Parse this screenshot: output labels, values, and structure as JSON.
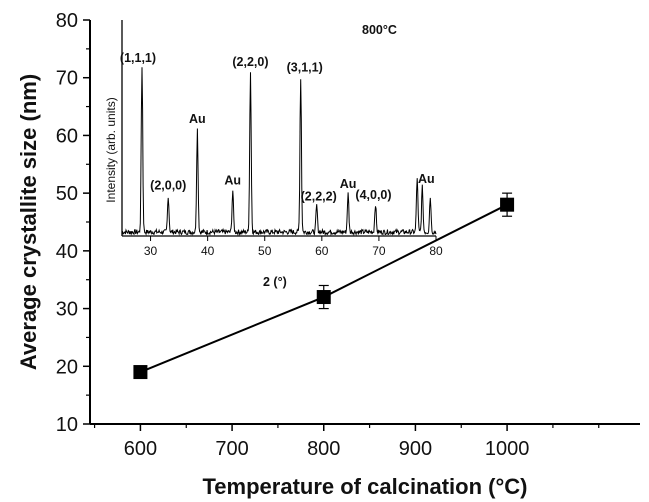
{
  "chart_data": [
    {
      "type": "line",
      "title": "",
      "xlabel": "Temperature of calcination (°C)",
      "ylabel": "Average crystallite size (nm)",
      "xlim": [
        545,
        1145
      ],
      "ylim": [
        10,
        80
      ],
      "x_ticks": [
        600,
        700,
        800,
        900,
        1000
      ],
      "y_ticks": [
        10,
        20,
        30,
        40,
        50,
        60,
        70,
        80
      ],
      "grid": false,
      "series": [
        {
          "x": [
            600,
            800,
            1000
          ],
          "y": [
            19,
            32,
            48
          ],
          "y_err": [
            0.4,
            2,
            2
          ],
          "marker": "square",
          "color": "#000000"
        }
      ]
    },
    {
      "type": "line",
      "title": "800°C",
      "xlabel": "2  (°)",
      "ylabel": "Intensity (arb. units)",
      "xlim": [
        25,
        80
      ],
      "x_ticks": [
        30,
        40,
        50,
        60,
        70,
        80
      ],
      "grid": false,
      "color": "#000000",
      "peaks": [
        {
          "x": 28.5,
          "y": 1.0,
          "label": "(1,1,1)"
        },
        {
          "x": 33.1,
          "y": 0.22,
          "label": "(2,0,0)"
        },
        {
          "x": 38.2,
          "y": 0.62,
          "label": "Au"
        },
        {
          "x": 44.4,
          "y": 0.25,
          "label": "Au"
        },
        {
          "x": 47.5,
          "y": 0.97,
          "label": "(2,2,0)"
        },
        {
          "x": 56.3,
          "y": 0.93,
          "label": "(3,1,1)"
        },
        {
          "x": 59.1,
          "y": 0.16,
          "label": "(2,2,2)"
        },
        {
          "x": 64.6,
          "y": 0.23,
          "label": "Au"
        },
        {
          "x": 69.4,
          "y": 0.17,
          "label": "(4,0,0)"
        },
        {
          "x": 76.7,
          "y": 0.33,
          "label": ""
        },
        {
          "x": 77.6,
          "y": 0.27,
          "label": "Au"
        },
        {
          "x": 79.0,
          "y": 0.21,
          "label": ""
        }
      ]
    }
  ]
}
